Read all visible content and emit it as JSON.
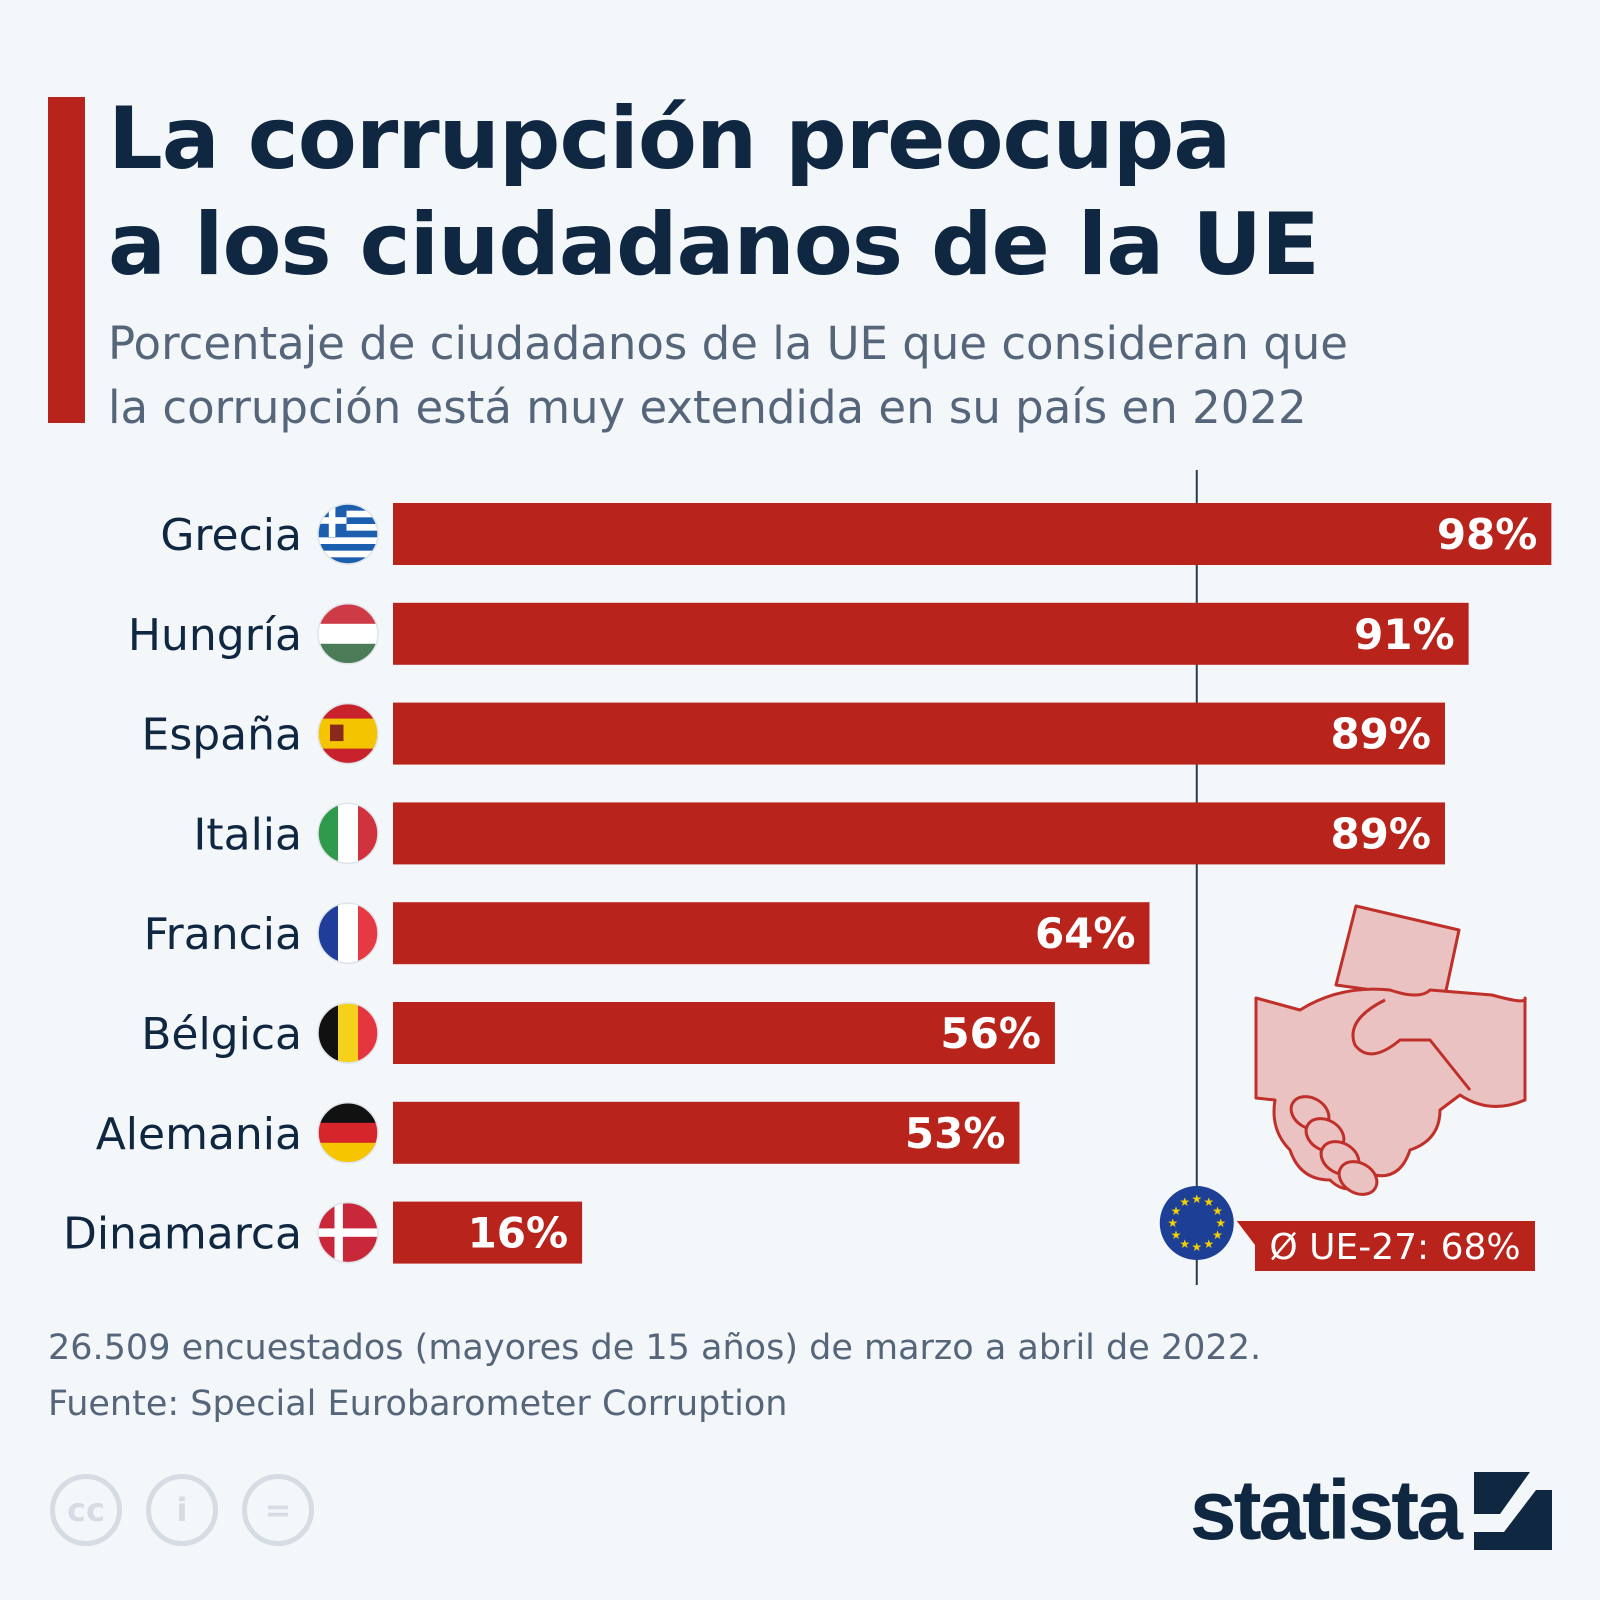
{
  "title_lines": [
    "La corrupción preocupa",
    "a los ciudadanos de la UE"
  ],
  "subtitle_lines": [
    "Porcentaje de ciudadanos de la UE que consideran que",
    "la corrupción está muy extendida en su país en 2022"
  ],
  "chart_data": {
    "type": "bar",
    "orientation": "horizontal",
    "categories": [
      "Grecia",
      "Hungría",
      "España",
      "Italia",
      "Francia",
      "Bélgica",
      "Alemania",
      "Dinamarca"
    ],
    "values": [
      98,
      91,
      89,
      89,
      64,
      56,
      53,
      16
    ],
    "value_labels": [
      "98%",
      "91%",
      "89%",
      "89%",
      "64%",
      "56%",
      "53%",
      "16%"
    ],
    "unit": "%",
    "xlim": [
      0,
      100
    ],
    "grid": false,
    "bar_color": "#b8241c",
    "reference_line": {
      "value": 68,
      "label": "Ø UE-27: 68%"
    },
    "flags": [
      "greece-flag",
      "hungary-flag",
      "spain-flag",
      "italy-flag",
      "france-flag",
      "belgium-flag",
      "germany-flag",
      "denmark-flag"
    ]
  },
  "footer": {
    "note": "26.509 encuestados (mayores de 15 años) de marzo a abril de 2022.",
    "source": "Fuente: Special Eurobarometer Corruption"
  },
  "license_icons": [
    "cc-icon",
    "attribution-icon",
    "no-derivatives-icon"
  ],
  "license_glyphs": [
    "cc",
    "i",
    "="
  ],
  "brand": "statista",
  "colors": {
    "accent": "#b8241c",
    "title": "#0f2741",
    "text": "#56667a",
    "background": "#f4f7fa"
  }
}
